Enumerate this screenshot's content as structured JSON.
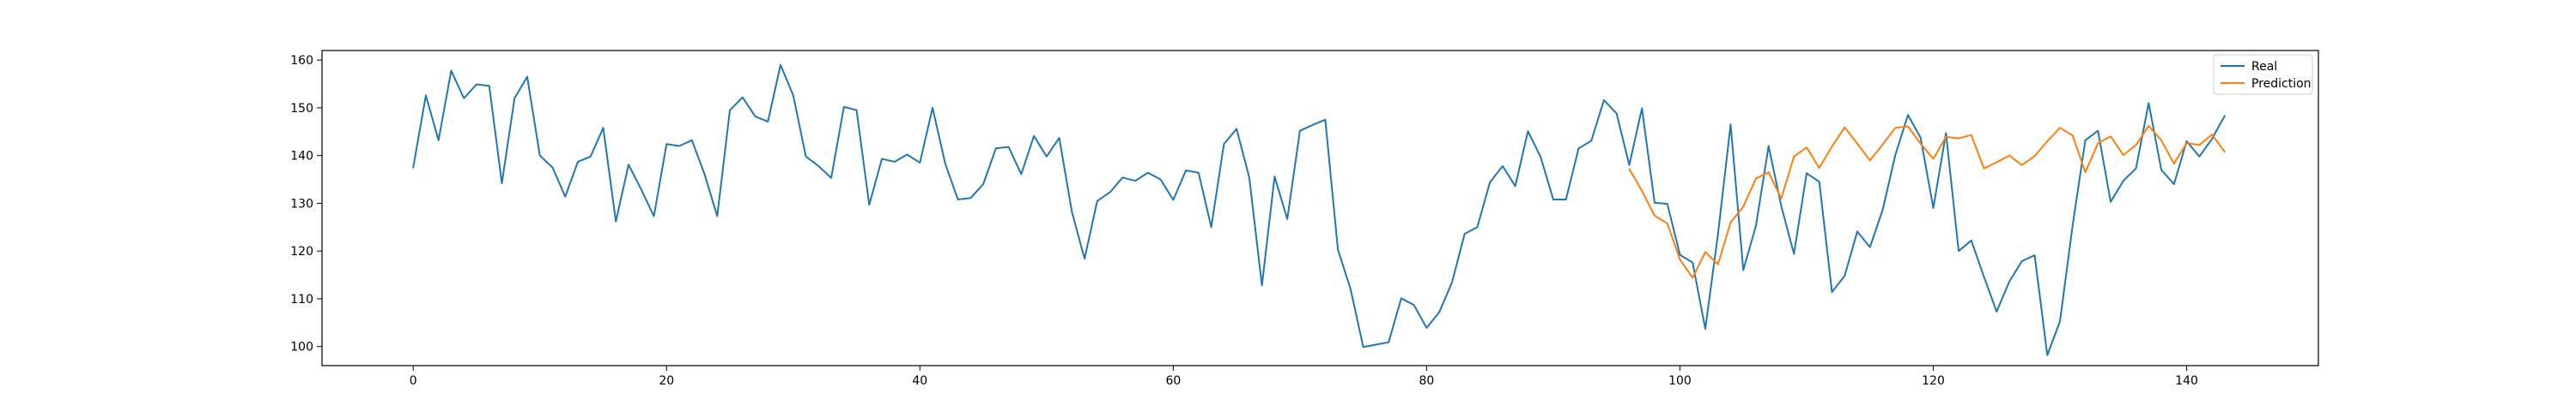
{
  "chart_data": {
    "type": "line",
    "title": "",
    "xlabel": "",
    "ylabel": "",
    "xlim": [
      -7.2,
      150.4
    ],
    "ylim": [
      96,
      162
    ],
    "xticks": [
      0,
      20,
      40,
      60,
      80,
      100,
      120,
      140
    ],
    "yticks": [
      100,
      110,
      120,
      130,
      140,
      150,
      160
    ],
    "grid": false,
    "legend_position": "top-right",
    "series": [
      {
        "name": "Real",
        "color": "#1f77b4",
        "x_start": 0,
        "values": [
          137.5,
          152.6,
          143.2,
          157.8,
          152.0,
          154.9,
          154.6,
          134.2,
          152.0,
          156.5,
          140.0,
          137.5,
          131.4,
          138.7,
          139.8,
          145.8,
          126.2,
          138.1,
          132.9,
          127.3,
          142.4,
          142.0,
          143.2,
          136.1,
          127.3,
          149.5,
          152.2,
          148.2,
          147.1,
          159.0,
          152.6,
          139.8,
          137.8,
          135.3,
          150.2,
          149.5,
          129.7,
          139.3,
          138.7,
          140.2,
          138.5,
          150.0,
          138.3,
          130.8,
          131.1,
          134.0,
          141.5,
          141.8,
          136.1,
          144.1,
          139.8,
          143.7,
          128.2,
          118.4,
          130.5,
          132.3,
          135.4,
          134.7,
          136.4,
          135.0,
          130.7,
          136.9,
          136.4,
          125.0,
          142.4,
          145.6,
          135.4,
          112.8,
          135.6,
          126.7,
          145.2,
          146.4,
          147.5,
          120.3,
          112.0,
          99.9,
          100.4,
          100.9,
          110.1,
          108.7,
          103.9,
          107.2,
          113.4,
          123.6,
          125.0,
          134.4,
          137.8,
          133.6,
          145.1,
          139.7,
          130.8,
          130.8,
          141.5,
          143.1,
          151.6,
          148.8,
          138.0,
          149.9,
          130.1,
          129.9,
          119.2,
          117.6,
          103.7,
          123.5,
          146.5,
          116.0,
          125.3,
          142.0,
          129.4,
          119.4,
          136.3,
          134.5,
          111.4,
          114.8,
          124.1,
          120.8,
          128.6,
          140.1,
          148.5,
          143.7,
          129.0,
          144.7,
          120.0,
          122.2,
          114.6,
          107.3,
          113.6,
          117.9,
          119.1,
          98.2,
          105.3,
          125.4,
          143.2,
          145.2,
          130.3,
          134.7,
          137.3,
          151.0,
          137.0,
          134.0,
          143.0,
          139.8,
          143.5,
          148.3
        ]
      },
      {
        "name": "Prediction",
        "color": "#ff7f0e",
        "x_start": 96,
        "values": [
          137.2,
          132.6,
          127.4,
          125.8,
          118.2,
          114.4,
          119.8,
          117.2,
          126.0,
          129.3,
          135.2,
          136.5,
          131.0,
          139.8,
          141.7,
          137.4,
          141.9,
          145.9,
          142.5,
          139.0,
          142.3,
          145.8,
          146.1,
          142.5,
          139.3,
          143.9,
          143.6,
          144.3,
          137.3,
          138.6,
          140.0,
          138.0,
          139.9,
          143.0,
          145.8,
          144.2,
          136.5,
          142.6,
          144.0,
          140.1,
          142.2,
          146.2,
          143.2,
          138.3,
          142.6,
          142.2,
          144.4,
          140.8
        ]
      }
    ]
  }
}
